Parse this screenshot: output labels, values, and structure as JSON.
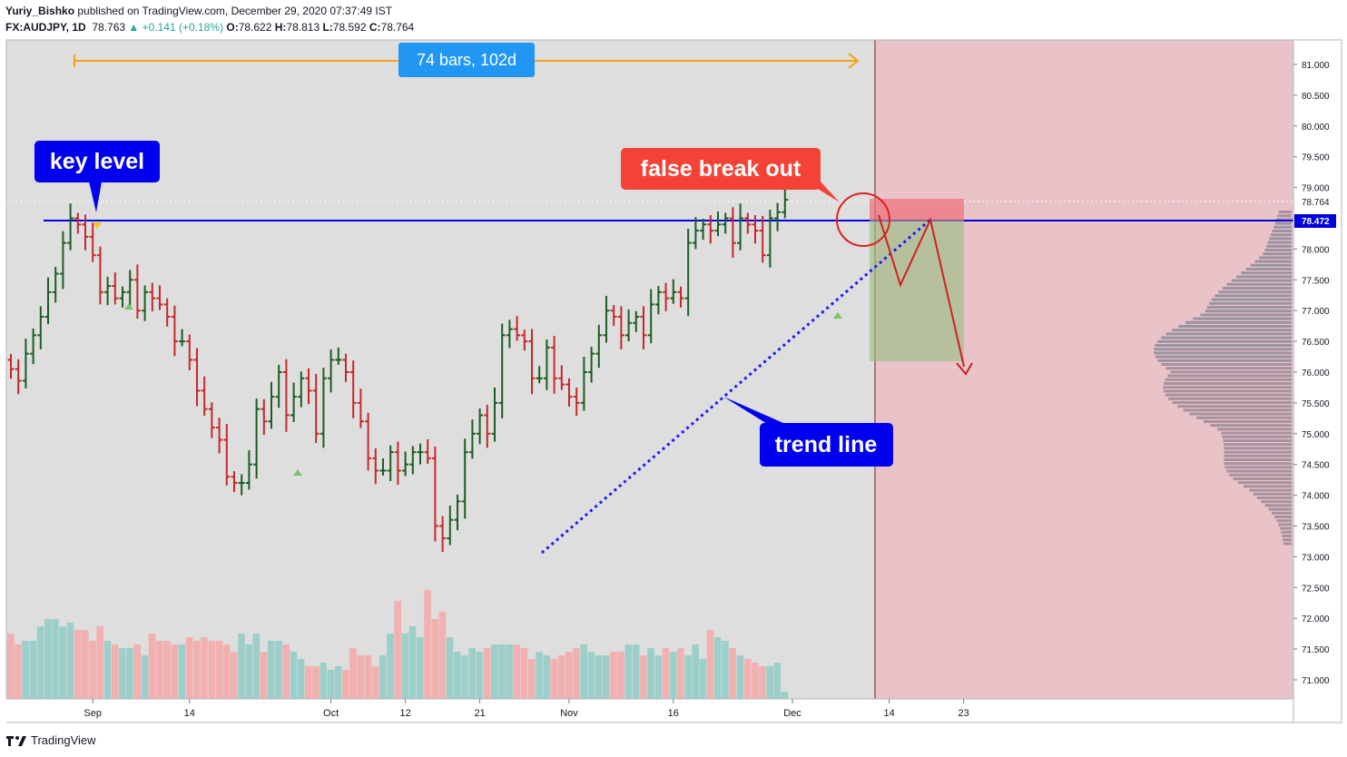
{
  "header": {
    "author": "Yuriy_Bishko",
    "published": "published on TradingView.com, December 29, 2020 07:37:49 IST",
    "symbol": "FX:AUDJPY, 1D",
    "last": "78.763",
    "change": "▲ +0.141 (+0.18%)",
    "o_label": "O:",
    "o": "78.622",
    "h_label": "H:",
    "h": "78.813",
    "l_label": "L:",
    "l": "78.592",
    "c_label": "C:",
    "c": "78.764"
  },
  "footer": {
    "brand": "TradingView"
  },
  "colors": {
    "up": "#1b5e20",
    "down": "#c62828",
    "vol_up": "#9ccfca",
    "vol_down": "#f2b0b0",
    "key_level": "#0000dd",
    "trend": "#1a1aff",
    "future_zone": "#e9c3c8",
    "bg": "#dedede",
    "label_blue": "#0000ee",
    "label_red": "#f44336",
    "measure_blue": "#2196f3",
    "measure_arrow": "#f7a11a"
  },
  "annotations": {
    "key_level": "key level",
    "false_break": "false break out",
    "trend_line": "trend line",
    "measure": "74 bars, 102d"
  },
  "chart_data": {
    "type": "ohlc",
    "symbol": "FX:AUDJPY",
    "timeframe": "1D",
    "ylim": [
      70.6,
      81.3
    ],
    "y_ticks": [
      "81.000",
      "80.500",
      "80.000",
      "79.500",
      "79.000",
      "78.500",
      "78.000",
      "77.500",
      "77.000",
      "76.500",
      "76.000",
      "75.500",
      "75.000",
      "74.500",
      "74.000",
      "73.500",
      "73.000",
      "72.500",
      "72.000",
      "71.500",
      "71.000"
    ],
    "price_labels": {
      "last": "78.764",
      "key": "78.472"
    },
    "key_level": 78.472,
    "last_price": 78.764,
    "x_ticks": [
      {
        "bar": 11,
        "label": "Sep"
      },
      {
        "bar": 24,
        "label": "14"
      },
      {
        "bar": 43,
        "label": "Oct"
      },
      {
        "bar": 53,
        "label": "12"
      },
      {
        "bar": 63,
        "label": "21"
      },
      {
        "bar": 75,
        "label": "Nov"
      },
      {
        "bar": 89,
        "label": "16"
      },
      {
        "bar": 105,
        "label": "Dec"
      },
      {
        "bar": 118,
        "label": "14"
      },
      {
        "bar": 128,
        "label": "23"
      }
    ],
    "closes": [
      76.05,
      75.86,
      76.3,
      76.6,
      76.9,
      77.3,
      77.6,
      78.1,
      78.5,
      78.4,
      78.2,
      77.9,
      77.3,
      77.4,
      77.2,
      77.3,
      77.5,
      77.0,
      77.3,
      77.2,
      77.1,
      76.9,
      76.5,
      76.5,
      76.2,
      75.7,
      75.4,
      75.1,
      74.9,
      74.3,
      74.2,
      74.2,
      74.5,
      75.4,
      75.2,
      75.6,
      76.0,
      75.3,
      75.6,
      75.9,
      75.7,
      75.0,
      75.9,
      76.2,
      76.2,
      76.0,
      75.5,
      75.2,
      74.6,
      74.4,
      74.4,
      74.7,
      74.4,
      74.5,
      74.7,
      74.7,
      74.6,
      73.5,
      73.3,
      73.6,
      73.9,
      74.7,
      75.0,
      75.3,
      75.0,
      75.5,
      76.6,
      76.7,
      76.6,
      76.5,
      75.9,
      75.9,
      76.4,
      75.9,
      75.8,
      75.6,
      75.5,
      76.0,
      76.3,
      76.6,
      77.0,
      76.9,
      76.6,
      76.8,
      76.9,
      76.6,
      77.1,
      77.3,
      77.2,
      77.3,
      77.2,
      78.1,
      78.3,
      78.4,
      78.3,
      78.4,
      78.5,
      78.1,
      78.5,
      78.4,
      78.3,
      77.9,
      78.5,
      78.6,
      78.8
    ],
    "future_zone_start_bar": 119,
    "volume": [
      1.8,
      1.5,
      1.6,
      1.6,
      2.0,
      2.2,
      2.2,
      2.0,
      2.1,
      1.9,
      1.9,
      1.6,
      2.0,
      1.6,
      1.5,
      1.4,
      1.4,
      1.5,
      1.2,
      1.8,
      1.6,
      1.6,
      1.5,
      1.5,
      1.7,
      1.6,
      1.7,
      1.6,
      1.6,
      1.5,
      1.3,
      1.8,
      1.5,
      1.8,
      1.3,
      1.6,
      1.6,
      1.5,
      1.3,
      1.1,
      0.9,
      0.9,
      1.0,
      0.8,
      0.9,
      0.8,
      1.4,
      1.2,
      1.2,
      0.9,
      1.2,
      1.8,
      2.7,
      1.8,
      2.0,
      1.7,
      3.0,
      2.2,
      2.4,
      1.7,
      1.3,
      1.2,
      1.4,
      1.3,
      1.4,
      1.5,
      1.5,
      1.5,
      1.5,
      1.4,
      1.1,
      1.3,
      1.2,
      1.1,
      1.2,
      1.3,
      1.4,
      1.5,
      1.3,
      1.2,
      1.2,
      1.3,
      1.3,
      1.5,
      1.5,
      1.2,
      1.4,
      1.2,
      1.4,
      1.3,
      1.4,
      1.2,
      1.5,
      1.1,
      1.9,
      1.7,
      1.6,
      1.4,
      1.2,
      1.1,
      1.0,
      0.9,
      0.9,
      1.0,
      0.2
    ]
  }
}
